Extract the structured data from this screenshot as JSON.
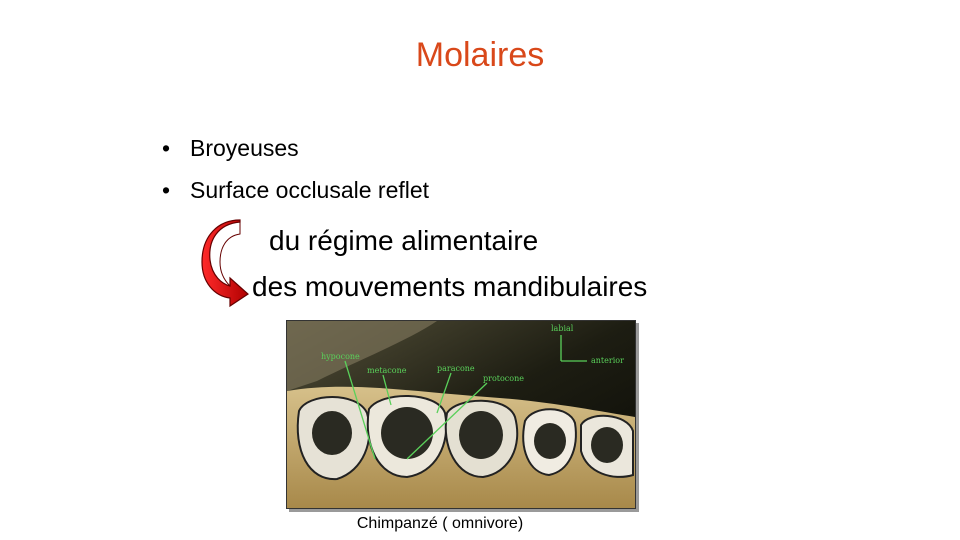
{
  "slide": {
    "title": "Molaires",
    "bullets": [
      "Broyeuses",
      "Surface occlusale reflet"
    ],
    "line1": "du régime alimentaire",
    "line2": "des mouvements mandibulaires",
    "caption": "Chimpanzé ( omnivore)"
  },
  "photo_labels": {
    "labial": "labial",
    "anterior": "anterior",
    "hypocone": "hypocone",
    "metacone": "metacone",
    "paracone": "paracone",
    "protocone": "protocone"
  },
  "colors": {
    "title": "#d9481a",
    "arrow": "#e01010",
    "label": "#5ad05a"
  },
  "icons": [
    "curved-arrow-icon"
  ]
}
